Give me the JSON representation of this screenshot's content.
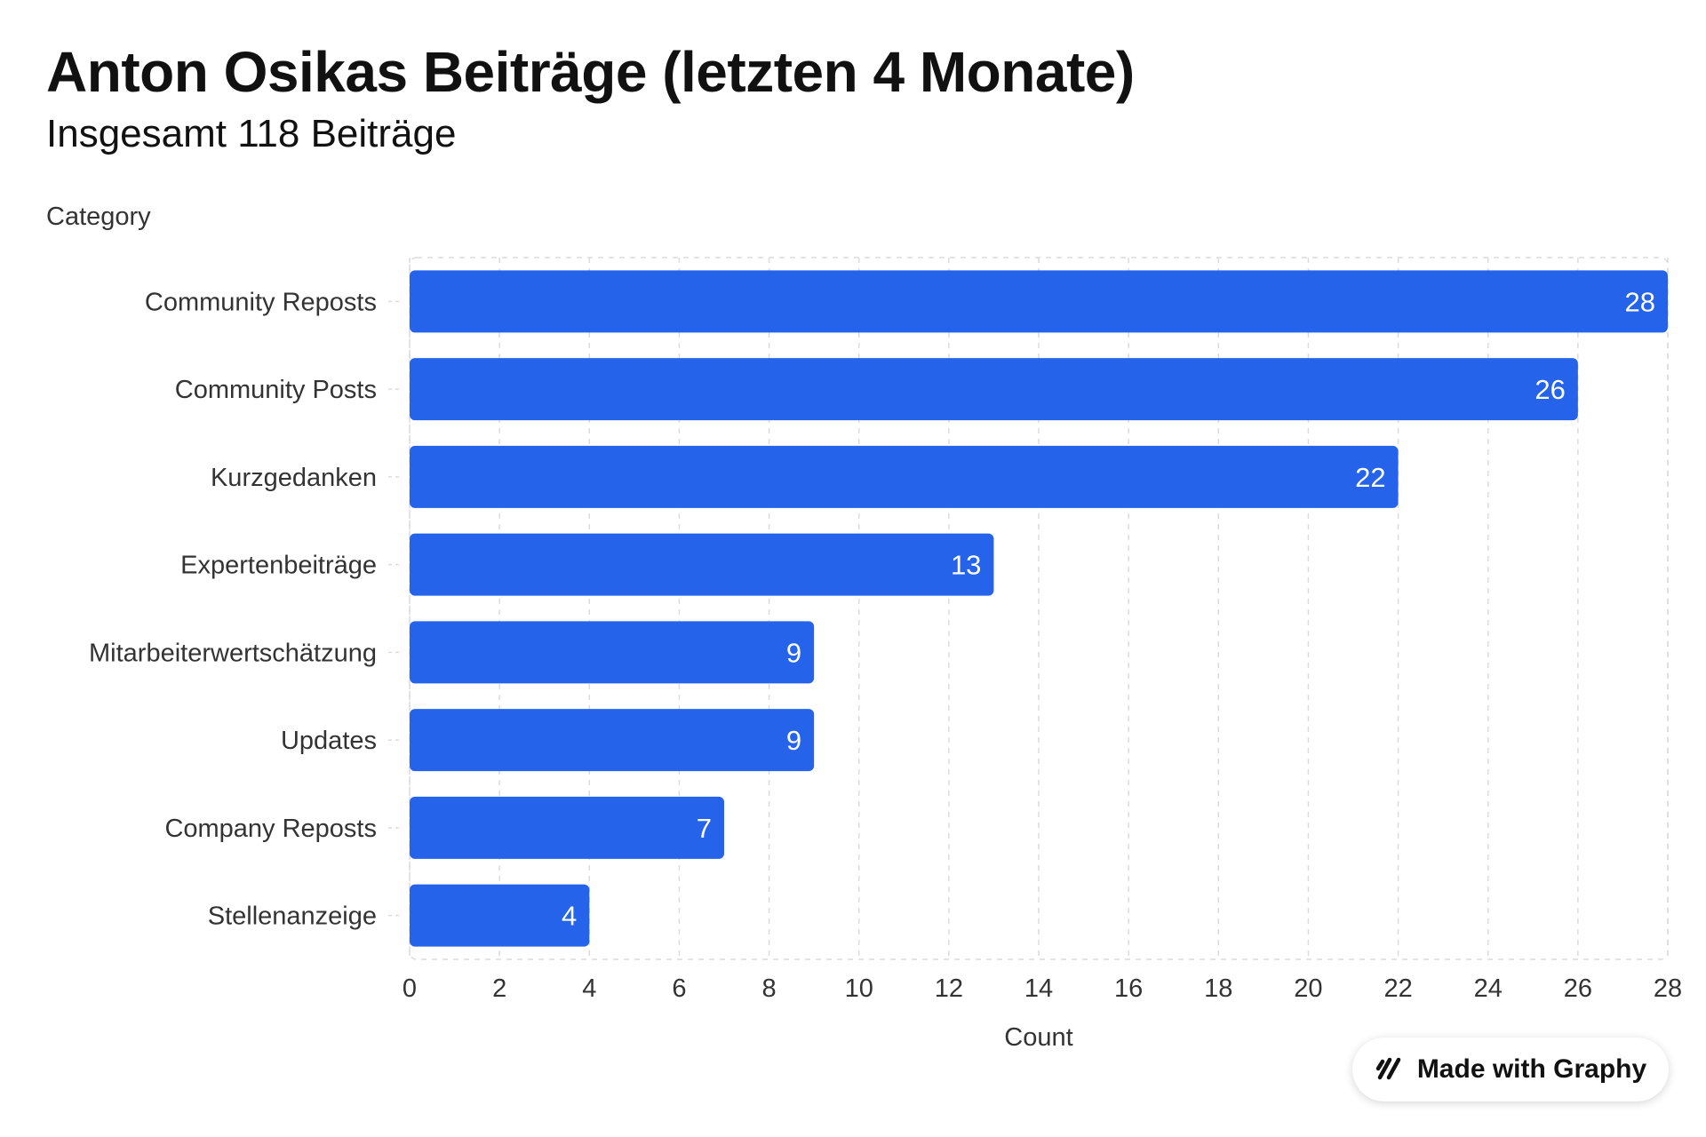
{
  "header": {
    "title": "Anton Osikas Beiträge (letzten 4 Monate)",
    "subtitle": "Insgesamt 118 Beiträge"
  },
  "badge": {
    "label": "Made with Graphy",
    "icon": "graphy-logo-icon"
  },
  "colors": {
    "bar": "#2563eb",
    "grid": "#dcdcdc",
    "text": "#333333"
  },
  "chart_data": {
    "type": "bar",
    "orientation": "horizontal",
    "ylabel": "Category",
    "xlabel": "Count",
    "categories": [
      "Community Reposts",
      "Community Posts",
      "Kurzgedanken",
      "Expertenbeiträge",
      "Mitarbeiterwertschätzung",
      "Updates",
      "Company Reposts",
      "Stellenanzeige"
    ],
    "values": [
      28,
      26,
      22,
      13,
      9,
      9,
      7,
      4
    ],
    "xlim": [
      0,
      28
    ],
    "xticks": [
      0,
      2,
      4,
      6,
      8,
      10,
      12,
      14,
      16,
      18,
      20,
      22,
      24,
      26,
      28
    ],
    "grid": true,
    "data_labels": true
  }
}
